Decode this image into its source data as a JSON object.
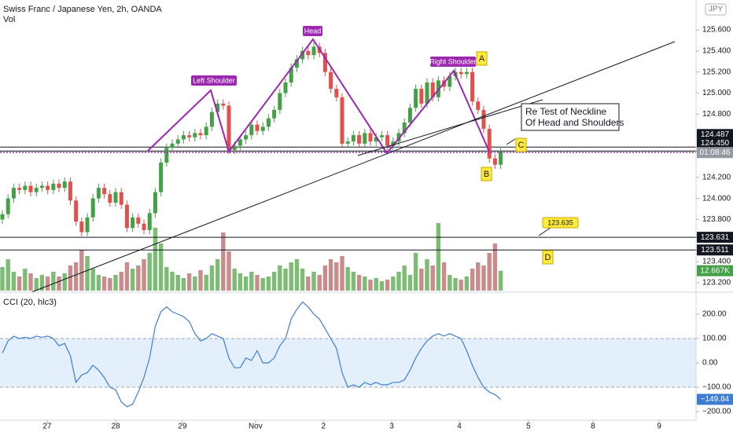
{
  "chart_data": {
    "type": "candlestick",
    "title": "Swiss Franc / Japanese Yen, 2h, OANDA",
    "currency": "JPY",
    "up_color": "#43a047",
    "down_color": "#e0504c",
    "open": [
      123.8,
      123.85,
      124.0,
      124.1,
      124.08,
      124.12,
      124.06,
      124.1,
      124.12,
      124.08,
      124.14,
      124.1,
      124.16,
      123.98,
      123.78,
      123.68,
      123.82,
      124.0,
      124.1,
      124.04,
      123.96,
      124.06,
      123.94,
      123.72,
      123.82,
      123.76,
      123.7,
      123.86,
      124.06,
      124.34,
      124.48,
      124.52,
      124.56,
      124.6,
      124.58,
      124.62,
      124.6,
      124.68,
      124.82,
      124.9,
      124.88,
      124.46,
      124.5,
      124.56,
      124.6,
      124.7,
      124.64,
      124.68,
      124.76,
      124.84,
      125.0,
      125.1,
      125.24,
      125.32,
      125.4,
      125.36,
      125.44,
      125.38,
      125.2,
      125.04,
      124.96,
      124.52,
      124.54,
      124.6,
      124.52,
      124.62,
      124.54,
      124.58,
      124.6,
      124.5,
      124.54,
      124.62,
      124.72,
      124.86,
      125.04,
      124.9,
      125.1,
      124.96,
      125.12,
      125.06,
      125.16,
      125.2,
      125.18,
      125.2,
      124.92,
      124.84,
      124.66,
      124.38,
      124.32
    ],
    "high": [
      123.89,
      124.04,
      124.14,
      124.14,
      124.16,
      124.16,
      124.14,
      124.16,
      124.16,
      124.18,
      124.18,
      124.2,
      124.2,
      124.02,
      123.82,
      123.86,
      124.04,
      124.14,
      124.14,
      124.08,
      124.1,
      124.1,
      123.98,
      123.86,
      123.86,
      123.8,
      123.9,
      124.1,
      124.38,
      124.52,
      124.56,
      124.6,
      124.64,
      124.64,
      124.66,
      124.66,
      124.72,
      124.86,
      124.94,
      124.94,
      124.92,
      124.54,
      124.6,
      124.64,
      124.74,
      124.74,
      124.72,
      124.8,
      124.88,
      125.04,
      125.14,
      125.28,
      125.36,
      125.44,
      125.44,
      125.48,
      125.48,
      125.42,
      125.24,
      125.08,
      125.0,
      124.58,
      124.64,
      124.64,
      124.66,
      124.66,
      124.62,
      124.64,
      124.64,
      124.58,
      124.66,
      124.76,
      124.9,
      125.08,
      125.08,
      125.14,
      125.14,
      125.16,
      125.16,
      125.2,
      125.24,
      125.24,
      125.24,
      125.24,
      124.96,
      124.88,
      124.7,
      124.42,
      124.49
    ],
    "low": [
      123.76,
      123.81,
      123.96,
      124.04,
      124.04,
      124.02,
      124.02,
      124.06,
      124.04,
      124.04,
      124.06,
      124.06,
      123.94,
      123.74,
      123.64,
      123.64,
      123.78,
      123.96,
      124.0,
      123.92,
      123.92,
      123.9,
      123.68,
      123.68,
      123.72,
      123.66,
      123.66,
      123.82,
      124.02,
      124.3,
      124.44,
      124.48,
      124.52,
      124.54,
      124.54,
      124.56,
      124.56,
      124.64,
      124.78,
      124.84,
      124.42,
      124.42,
      124.46,
      124.52,
      124.56,
      124.6,
      124.6,
      124.64,
      124.72,
      124.8,
      124.96,
      125.06,
      125.2,
      125.28,
      125.32,
      125.32,
      125.34,
      125.16,
      125.0,
      124.92,
      124.48,
      124.48,
      124.5,
      124.48,
      124.48,
      124.5,
      124.5,
      124.54,
      124.46,
      124.46,
      124.5,
      124.58,
      124.68,
      124.82,
      124.86,
      124.86,
      124.92,
      124.92,
      125.02,
      125.02,
      125.12,
      125.14,
      125.14,
      124.88,
      124.8,
      124.62,
      124.34,
      124.28,
      124.28
    ],
    "close": [
      123.85,
      124.0,
      124.1,
      124.08,
      124.12,
      124.06,
      124.1,
      124.12,
      124.08,
      124.14,
      124.1,
      124.16,
      123.98,
      123.78,
      123.68,
      123.82,
      124.0,
      124.1,
      124.04,
      123.96,
      124.06,
      123.94,
      123.72,
      123.82,
      123.76,
      123.7,
      123.86,
      124.06,
      124.34,
      124.48,
      124.52,
      124.56,
      124.6,
      124.58,
      124.62,
      124.6,
      124.68,
      124.82,
      124.9,
      124.88,
      124.46,
      124.5,
      124.56,
      124.6,
      124.7,
      124.64,
      124.68,
      124.76,
      124.84,
      125.0,
      125.1,
      125.24,
      125.32,
      125.4,
      125.36,
      125.44,
      125.38,
      125.2,
      125.04,
      124.96,
      124.52,
      124.54,
      124.6,
      124.52,
      124.62,
      124.54,
      124.58,
      124.6,
      124.5,
      124.54,
      124.62,
      124.72,
      124.86,
      125.04,
      124.9,
      125.1,
      124.96,
      125.12,
      125.06,
      125.16,
      125.2,
      125.18,
      125.2,
      124.92,
      124.84,
      124.66,
      124.38,
      124.32,
      124.45
    ],
    "ylim": [
      123.125,
      125.883
    ],
    "yticks": [
      {
        "value": 125.6,
        "label": "125.600"
      },
      {
        "value": 125.4,
        "label": "125.400"
      },
      {
        "value": 125.2,
        "label": "125.200"
      },
      {
        "value": 125.0,
        "label": "125.000"
      },
      {
        "value": 124.8,
        "label": "124.800"
      },
      {
        "value": 124.2,
        "label": "124.200"
      },
      {
        "value": 124.0,
        "label": "124.000"
      },
      {
        "value": 123.8,
        "label": "123.800"
      },
      {
        "value": 123.4,
        "label": "123.400"
      },
      {
        "value": 123.2,
        "label": "123.200"
      }
    ],
    "xlim": [
      -0.42,
      122.5
    ],
    "xticks": [
      {
        "value": 7.9,
        "label": "27"
      },
      {
        "value": 20,
        "label": "28"
      },
      {
        "value": 31.8,
        "label": "29"
      },
      {
        "value": 44.7,
        "label": "Nov"
      },
      {
        "value": 56.7,
        "label": "2"
      },
      {
        "value": 68.75,
        "label": "3"
      },
      {
        "value": 80.7,
        "label": "4"
      },
      {
        "value": 92.9,
        "label": "5"
      },
      {
        "value": 104.3,
        "label": "8"
      },
      {
        "value": 116,
        "label": "9"
      }
    ],
    "price_lines": [
      {
        "value": 124.487
      },
      {
        "value": 124.45,
        "label": "124.450"
      },
      {
        "value": 123.631
      },
      {
        "value": 123.511
      }
    ],
    "countdown": "01:08:46",
    "volume": {
      "name": "Vol",
      "up_color": "#7cbc74",
      "down_color": "#c98c8c",
      "ylim": [
        0,
        45000
      ],
      "values": [
        15000,
        20000,
        12000,
        9000,
        14000,
        11000,
        8000,
        10000,
        9000,
        12000,
        9000,
        11000,
        16000,
        18000,
        26000,
        22000,
        14000,
        10000,
        9000,
        8000,
        10000,
        12000,
        18000,
        14000,
        16000,
        20000,
        24000,
        40000,
        30000,
        15000,
        12000,
        10000,
        8000,
        11000,
        9000,
        13000,
        10000,
        16000,
        20000,
        37000,
        25000,
        14000,
        11000,
        9000,
        12000,
        10000,
        8000,
        9000,
        12000,
        16000,
        14000,
        18000,
        20000,
        14000,
        9000,
        12000,
        10000,
        16000,
        20000,
        18000,
        22000,
        15000,
        12000,
        10000,
        9000,
        7000,
        8000,
        6000,
        7000,
        9000,
        12000,
        16000,
        10000,
        24000,
        14000,
        20000,
        16000,
        43000,
        18000,
        10000,
        8000,
        7000,
        9000,
        14000,
        18000,
        16000,
        24000,
        30000,
        12667
      ],
      "value_labels": {
        "88": "12.667K"
      }
    },
    "cci": {
      "name": "CCI (20, hlc3)",
      "color": "#3f7dd3",
      "band_color": "#e3f0fb",
      "band": [
        -100,
        100
      ],
      "ylim": [
        -235.5,
        264.5
      ],
      "yticks": [
        {
          "value": 200,
          "label": "200.00"
        },
        {
          "value": 100,
          "label": "100.00"
        },
        {
          "value": 0,
          "label": "0.00"
        },
        {
          "value": -100,
          "label": "−100.00"
        },
        {
          "value": -200,
          "label": "−200.00"
        }
      ],
      "values": [
        40,
        90,
        110,
        100,
        105,
        100,
        110,
        105,
        110,
        100,
        70,
        80,
        30,
        -80,
        -50,
        -40,
        -10,
        -30,
        -60,
        -100,
        -110,
        -160,
        -180,
        -170,
        -120,
        -60,
        20,
        150,
        210,
        230,
        210,
        200,
        190,
        170,
        120,
        90,
        100,
        120,
        110,
        100,
        20,
        -20,
        -20,
        20,
        10,
        50,
        0,
        0,
        20,
        70,
        100,
        180,
        220,
        250,
        230,
        200,
        180,
        140,
        100,
        60,
        -40,
        -100,
        -90,
        -100,
        -80,
        -90,
        -80,
        -90,
        -90,
        -80,
        -80,
        -70,
        -30,
        20,
        60,
        90,
        110,
        120,
        110,
        120,
        110,
        100,
        50,
        -10,
        -60,
        -100,
        -120,
        -130,
        -149.84
      ],
      "value_labels": {
        "88": "−149.84"
      }
    },
    "annotations": {
      "left_shoulder": "Left Shoulder",
      "head": "Head",
      "right_shoulder": "Right Shoulder",
      "retest_line1": "Re Test of Neckline",
      "retest_line2": "Of Head and Shoulders",
      "a": "A",
      "b": "B",
      "c": "C",
      "d": "D",
      "callout": 123.635
    }
  }
}
